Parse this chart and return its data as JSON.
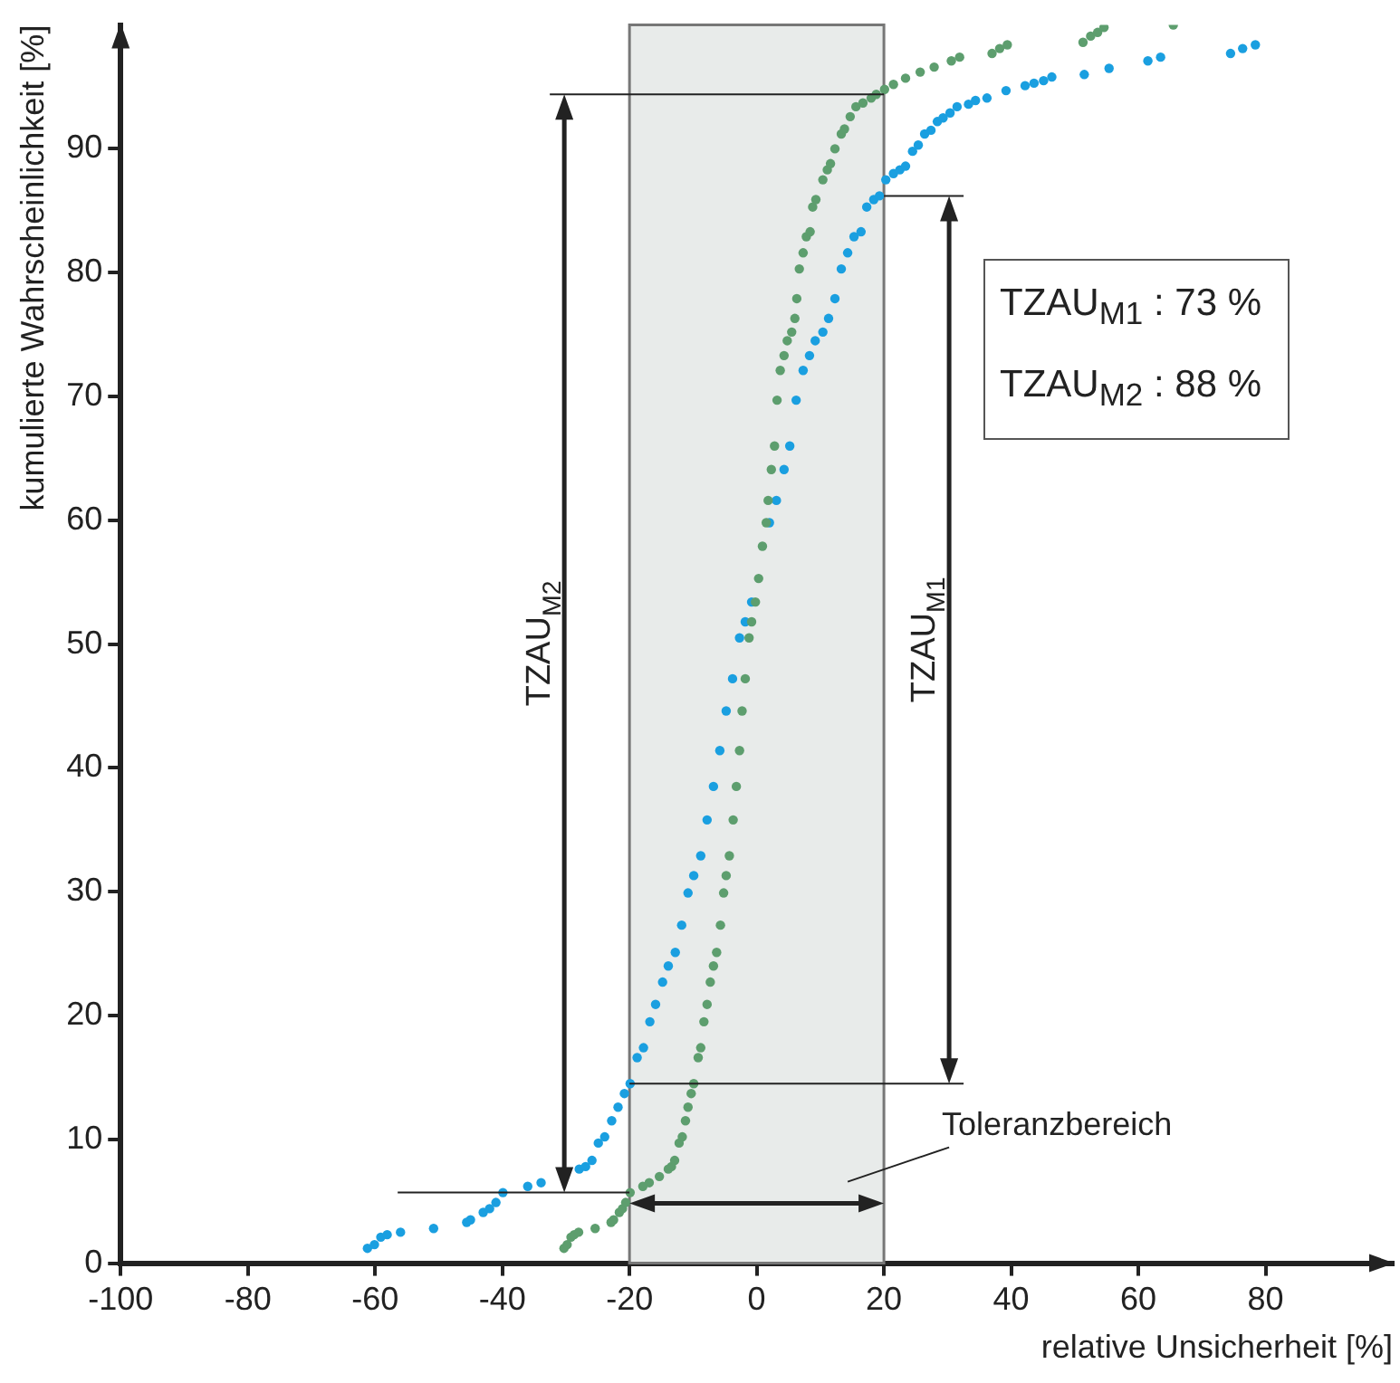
{
  "chart_data": {
    "type": "scatter",
    "xlabel": "relative Unsicherheit [%]",
    "ylabel": "kumulierte Wahrscheinlichkeit [%]",
    "xlim": [
      -100,
      100
    ],
    "xticks": [
      -100,
      -80,
      -60,
      -40,
      -20,
      0,
      20,
      40,
      60,
      80
    ],
    "ylim": [
      0,
      100
    ],
    "yticks": [
      0,
      10,
      20,
      30,
      40,
      50,
      60,
      70,
      80,
      90
    ],
    "grid": false,
    "legend": false,
    "marker": "circle",
    "bands": [
      {
        "axis": "x",
        "from": -20,
        "to": 20,
        "label": "Toleranzbereich",
        "color": "#e8ebea"
      }
    ],
    "annotations": [
      "TZAU$_{M2}$",
      "TZAU$_{M1}$",
      "TZAU$_{M1}$ : 73 %",
      "TZAU$_{M2}$ : 88 %"
    ],
    "series": [
      {
        "color": "#5d9e6e",
        "x": [
          -30.3,
          -29.8,
          -29.2,
          -28.7,
          -28.0,
          -25.4,
          -22.9,
          -22.5,
          -21.6,
          -21.1,
          -20.6,
          -19.9,
          -17.9,
          -16.9,
          -15.3,
          -13.9,
          -13.4,
          -12.9,
          -12.2,
          -11.7,
          -11.2,
          -10.8,
          -10.3,
          -9.9,
          -9.2,
          -8.8,
          -8.3,
          -7.8,
          -7.3,
          -6.8,
          -6.3,
          -5.7,
          -5.2,
          -4.8,
          -4.3,
          -3.7,
          -3.2,
          -2.7,
          -2.3,
          -1.8,
          -1.2,
          -0.8,
          -0.2,
          0.3,
          0.9,
          1.5,
          1.8,
          2.3,
          2.8,
          3.2,
          3.7,
          4.3,
          4.8,
          5.5,
          6.0,
          6.3,
          6.7,
          7.3,
          7.8,
          8.4,
          8.8,
          9.3,
          10.4,
          11.1,
          11.6,
          12.3,
          13.3,
          13.8,
          14.7,
          15.6,
          16.7,
          18.0,
          18.8,
          20.1,
          21.5,
          23.4,
          25.7,
          27.9,
          30.6,
          31.9,
          37.0,
          38.2,
          39.4,
          51.3,
          52.5,
          53.6,
          54.6,
          65.5
        ],
        "values": [
          1.2,
          1.5,
          2.1,
          2.3,
          2.5,
          2.8,
          3.3,
          3.5,
          4.1,
          4.4,
          4.9,
          5.7,
          6.2,
          6.5,
          7.0,
          7.6,
          7.8,
          8.3,
          9.7,
          10.2,
          11.5,
          12.6,
          13.7,
          14.5,
          16.6,
          17.4,
          19.5,
          20.9,
          22.7,
          24.0,
          25.1,
          27.3,
          29.9,
          31.3,
          32.9,
          35.8,
          38.5,
          41.4,
          44.6,
          47.2,
          50.5,
          51.8,
          53.4,
          55.3,
          57.9,
          59.8,
          61.6,
          64.1,
          66.0,
          69.7,
          72.1,
          73.3,
          74.5,
          75.2,
          76.3,
          77.9,
          80.3,
          81.6,
          82.9,
          83.3,
          85.3,
          85.9,
          87.5,
          88.3,
          88.8,
          90.0,
          91.2,
          91.6,
          92.6,
          93.4,
          93.7,
          94.1,
          94.4,
          94.8,
          95.2,
          95.7,
          96.2,
          96.6,
          97.1,
          97.4,
          97.7,
          98.1,
          98.4,
          98.6,
          99.1,
          99.4,
          99.8,
          100
        ]
      },
      {
        "color": "#1a9fe0",
        "x": [
          -61.2,
          -60.1,
          -59.1,
          -58.1,
          -56.0,
          -50.8,
          -45.6,
          -45.0,
          -43.0,
          -42.0,
          -41.0,
          -39.9,
          -36.0,
          -33.9,
          -30.9,
          -27.9,
          -26.9,
          -25.9,
          -24.9,
          -23.9,
          -22.8,
          -21.8,
          -20.8,
          -19.9,
          -18.8,
          -17.8,
          -16.8,
          -15.9,
          -14.8,
          -13.9,
          -12.8,
          -11.8,
          -10.8,
          -9.9,
          -8.8,
          -7.8,
          -6.8,
          -5.8,
          -4.8,
          -3.8,
          -2.7,
          -1.8,
          -0.8,
          2.0,
          3.1,
          4.3,
          5.2,
          6.2,
          7.3,
          8.3,
          9.2,
          10.4,
          11.3,
          12.3,
          13.3,
          14.3,
          15.3,
          16.4,
          17.3,
          18.4,
          19.3,
          20.3,
          21.5,
          22.5,
          23.4,
          24.5,
          25.4,
          26.4,
          27.4,
          28.4,
          29.3,
          30.4,
          31.5,
          33.3,
          34.4,
          36.2,
          39.2,
          42.2,
          43.6,
          45.1,
          46.4,
          51.5,
          55.4,
          61.5,
          63.5,
          74.5,
          76.4,
          78.4
        ],
        "values": [
          1.2,
          1.5,
          2.1,
          2.3,
          2.5,
          2.8,
          3.3,
          3.5,
          4.1,
          4.4,
          4.9,
          5.7,
          6.2,
          6.5,
          null,
          7.6,
          7.8,
          8.3,
          9.7,
          10.2,
          11.5,
          12.6,
          13.7,
          14.5,
          16.6,
          17.4,
          19.5,
          20.9,
          22.7,
          24.0,
          25.1,
          27.3,
          29.9,
          31.3,
          32.9,
          35.8,
          38.5,
          41.4,
          44.6,
          47.2,
          50.5,
          51.8,
          53.4,
          59.8,
          61.6,
          64.1,
          66.0,
          69.7,
          72.1,
          73.3,
          74.5,
          75.2,
          76.3,
          77.9,
          80.3,
          81.6,
          82.9,
          83.3,
          85.3,
          85.9,
          86.2,
          87.5,
          88.0,
          88.3,
          88.6,
          89.8,
          90.3,
          91.2,
          91.5,
          92.2,
          92.5,
          92.9,
          93.4,
          93.6,
          93.9,
          94.1,
          94.7,
          95.1,
          95.3,
          95.5,
          95.8,
          96.0,
          96.5,
          97.1,
          97.4,
          97.7,
          98.1,
          98.4
        ]
      }
    ]
  }
}
